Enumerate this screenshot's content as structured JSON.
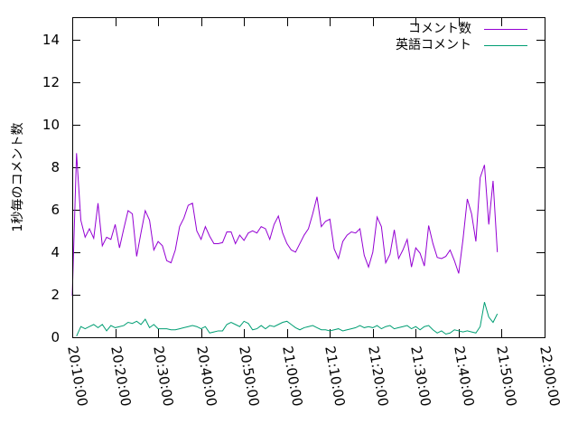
{
  "chart_data": {
    "type": "line",
    "title": "",
    "xlabel": "",
    "ylabel": "1秒毎のコメント数",
    "grid": false,
    "legend_position": "top-right",
    "xlim": [
      "20:10:00",
      "22:00:00"
    ],
    "ylim": [
      0,
      15
    ],
    "x_ticks": [
      "20:10:00",
      "20:20:00",
      "20:30:00",
      "20:40:00",
      "20:50:00",
      "21:00:00",
      "21:10:00",
      "21:20:00",
      "21:30:00",
      "21:40:00",
      "21:50:00",
      "22:00:00"
    ],
    "y_ticks": [
      "0",
      "2",
      "4",
      "6",
      "8",
      "10",
      "12",
      "14"
    ],
    "series": [
      {
        "name": "コメント数",
        "color": "#9400d3",
        "points": [
          [
            "20:10:00",
            1.95
          ],
          [
            "20:11:00",
            8.65
          ],
          [
            "20:12:00",
            5.5
          ],
          [
            "20:13:00",
            4.7
          ],
          [
            "20:14:00",
            5.1
          ],
          [
            "20:15:00",
            4.65
          ],
          [
            "20:16:00",
            6.3
          ],
          [
            "20:17:00",
            4.3
          ],
          [
            "20:18:00",
            4.7
          ],
          [
            "20:19:00",
            4.6
          ],
          [
            "20:20:00",
            5.3
          ],
          [
            "20:21:00",
            4.2
          ],
          [
            "20:22:00",
            5.1
          ],
          [
            "20:23:00",
            5.95
          ],
          [
            "20:24:00",
            5.8
          ],
          [
            "20:25:00",
            3.8
          ],
          [
            "20:26:00",
            4.9
          ],
          [
            "20:27:00",
            5.95
          ],
          [
            "20:28:00",
            5.5
          ],
          [
            "20:29:00",
            4.1
          ],
          [
            "20:30:00",
            4.5
          ],
          [
            "20:31:00",
            4.3
          ],
          [
            "20:32:00",
            3.6
          ],
          [
            "20:33:00",
            3.5
          ],
          [
            "20:34:00",
            4.1
          ],
          [
            "20:35:00",
            5.2
          ],
          [
            "20:36:00",
            5.6
          ],
          [
            "20:37:00",
            6.2
          ],
          [
            "20:38:00",
            6.3
          ],
          [
            "20:39:00",
            5.0
          ],
          [
            "20:40:00",
            4.6
          ],
          [
            "20:41:00",
            5.2
          ],
          [
            "20:42:00",
            4.75
          ],
          [
            "20:43:00",
            4.4
          ],
          [
            "20:44:00",
            4.4
          ],
          [
            "20:45:00",
            4.45
          ],
          [
            "20:46:00",
            4.95
          ],
          [
            "20:47:00",
            4.95
          ],
          [
            "20:48:00",
            4.4
          ],
          [
            "20:49:00",
            4.8
          ],
          [
            "20:50:00",
            4.55
          ],
          [
            "20:51:00",
            4.9
          ],
          [
            "20:52:00",
            5.0
          ],
          [
            "20:53:00",
            4.9
          ],
          [
            "20:54:00",
            5.2
          ],
          [
            "20:55:00",
            5.1
          ],
          [
            "20:56:00",
            4.6
          ],
          [
            "20:57:00",
            5.3
          ],
          [
            "20:58:00",
            5.7
          ],
          [
            "20:59:00",
            4.9
          ],
          [
            "21:00:00",
            4.4
          ],
          [
            "21:01:00",
            4.1
          ],
          [
            "21:02:00",
            4.0
          ],
          [
            "21:03:00",
            4.4
          ],
          [
            "21:04:00",
            4.8
          ],
          [
            "21:05:00",
            5.1
          ],
          [
            "21:06:00",
            5.8
          ],
          [
            "21:07:00",
            6.6
          ],
          [
            "21:08:00",
            5.2
          ],
          [
            "21:09:00",
            5.45
          ],
          [
            "21:10:00",
            5.55
          ],
          [
            "21:11:00",
            4.15
          ],
          [
            "21:12:00",
            3.7
          ],
          [
            "21:13:00",
            4.5
          ],
          [
            "21:14:00",
            4.8
          ],
          [
            "21:15:00",
            4.95
          ],
          [
            "21:16:00",
            4.9
          ],
          [
            "21:17:00",
            5.1
          ],
          [
            "21:18:00",
            3.85
          ],
          [
            "21:19:00",
            3.3
          ],
          [
            "21:20:00",
            4.0
          ],
          [
            "21:21:00",
            5.65
          ],
          [
            "21:22:00",
            5.2
          ],
          [
            "21:23:00",
            3.5
          ],
          [
            "21:24:00",
            3.9
          ],
          [
            "21:25:00",
            5.05
          ],
          [
            "21:26:00",
            3.7
          ],
          [
            "21:27:00",
            4.1
          ],
          [
            "21:28:00",
            4.6
          ],
          [
            "21:29:00",
            3.3
          ],
          [
            "21:30:00",
            4.2
          ],
          [
            "21:31:00",
            3.95
          ],
          [
            "21:32:00",
            3.35
          ],
          [
            "21:33:00",
            5.25
          ],
          [
            "21:34:00",
            4.4
          ],
          [
            "21:35:00",
            3.75
          ],
          [
            "21:36:00",
            3.7
          ],
          [
            "21:37:00",
            3.8
          ],
          [
            "21:38:00",
            4.1
          ],
          [
            "21:39:00",
            3.6
          ],
          [
            "21:40:00",
            3.0
          ],
          [
            "21:41:00",
            4.6
          ],
          [
            "21:42:00",
            6.5
          ],
          [
            "21:43:00",
            5.8
          ],
          [
            "21:44:00",
            4.5
          ],
          [
            "21:45:00",
            7.5
          ],
          [
            "21:46:00",
            8.1
          ],
          [
            "21:47:00",
            5.3
          ],
          [
            "21:48:00",
            7.35
          ],
          [
            "21:49:00",
            4.0
          ]
        ]
      },
      {
        "name": "英語コメント",
        "color": "#009e73",
        "points": [
          [
            "20:11:00",
            0.05
          ],
          [
            "20:12:00",
            0.5
          ],
          [
            "20:13:00",
            0.4
          ],
          [
            "20:14:00",
            0.5
          ],
          [
            "20:15:00",
            0.6
          ],
          [
            "20:16:00",
            0.45
          ],
          [
            "20:17:00",
            0.6
          ],
          [
            "20:18:00",
            0.3
          ],
          [
            "20:19:00",
            0.55
          ],
          [
            "20:20:00",
            0.45
          ],
          [
            "20:21:00",
            0.5
          ],
          [
            "20:22:00",
            0.55
          ],
          [
            "20:23:00",
            0.7
          ],
          [
            "20:24:00",
            0.65
          ],
          [
            "20:25:00",
            0.75
          ],
          [
            "20:26:00",
            0.6
          ],
          [
            "20:27:00",
            0.85
          ],
          [
            "20:28:00",
            0.45
          ],
          [
            "20:29:00",
            0.6
          ],
          [
            "20:30:00",
            0.4
          ],
          [
            "20:31:00",
            0.4
          ],
          [
            "20:32:00",
            0.4
          ],
          [
            "20:33:00",
            0.35
          ],
          [
            "20:34:00",
            0.35
          ],
          [
            "20:35:00",
            0.4
          ],
          [
            "20:36:00",
            0.45
          ],
          [
            "20:37:00",
            0.5
          ],
          [
            "20:38:00",
            0.55
          ],
          [
            "20:39:00",
            0.5
          ],
          [
            "20:40:00",
            0.4
          ],
          [
            "20:41:00",
            0.5
          ],
          [
            "20:42:00",
            0.2
          ],
          [
            "20:43:00",
            0.25
          ],
          [
            "20:44:00",
            0.3
          ],
          [
            "20:45:00",
            0.3
          ],
          [
            "20:46:00",
            0.6
          ],
          [
            "20:47:00",
            0.7
          ],
          [
            "20:48:00",
            0.6
          ],
          [
            "20:49:00",
            0.5
          ],
          [
            "20:50:00",
            0.75
          ],
          [
            "20:51:00",
            0.65
          ],
          [
            "20:52:00",
            0.35
          ],
          [
            "20:53:00",
            0.4
          ],
          [
            "20:54:00",
            0.55
          ],
          [
            "20:55:00",
            0.4
          ],
          [
            "20:56:00",
            0.55
          ],
          [
            "20:57:00",
            0.5
          ],
          [
            "20:58:00",
            0.6
          ],
          [
            "20:59:00",
            0.7
          ],
          [
            "21:00:00",
            0.75
          ],
          [
            "21:01:00",
            0.6
          ],
          [
            "21:02:00",
            0.45
          ],
          [
            "21:03:00",
            0.35
          ],
          [
            "21:04:00",
            0.45
          ],
          [
            "21:05:00",
            0.5
          ],
          [
            "21:06:00",
            0.55
          ],
          [
            "21:07:00",
            0.45
          ],
          [
            "21:08:00",
            0.35
          ],
          [
            "21:09:00",
            0.35
          ],
          [
            "21:10:00",
            0.3
          ],
          [
            "21:11:00",
            0.35
          ],
          [
            "21:12:00",
            0.4
          ],
          [
            "21:13:00",
            0.3
          ],
          [
            "21:14:00",
            0.35
          ],
          [
            "21:15:00",
            0.4
          ],
          [
            "21:16:00",
            0.45
          ],
          [
            "21:17:00",
            0.55
          ],
          [
            "21:18:00",
            0.45
          ],
          [
            "21:19:00",
            0.5
          ],
          [
            "21:20:00",
            0.45
          ],
          [
            "21:21:00",
            0.55
          ],
          [
            "21:22:00",
            0.4
          ],
          [
            "21:23:00",
            0.5
          ],
          [
            "21:24:00",
            0.55
          ],
          [
            "21:25:00",
            0.4
          ],
          [
            "21:26:00",
            0.45
          ],
          [
            "21:27:00",
            0.5
          ],
          [
            "21:28:00",
            0.55
          ],
          [
            "21:29:00",
            0.4
          ],
          [
            "21:30:00",
            0.5
          ],
          [
            "21:31:00",
            0.35
          ],
          [
            "21:32:00",
            0.5
          ],
          [
            "21:33:00",
            0.55
          ],
          [
            "21:34:00",
            0.35
          ],
          [
            "21:35:00",
            0.2
          ],
          [
            "21:36:00",
            0.3
          ],
          [
            "21:37:00",
            0.15
          ],
          [
            "21:38:00",
            0.2
          ],
          [
            "21:39:00",
            0.35
          ],
          [
            "21:40:00",
            0.3
          ],
          [
            "21:41:00",
            0.25
          ],
          [
            "21:42:00",
            0.3
          ],
          [
            "21:43:00",
            0.25
          ],
          [
            "21:44:00",
            0.2
          ],
          [
            "21:45:00",
            0.5
          ],
          [
            "21:46:00",
            1.65
          ],
          [
            "21:47:00",
            0.95
          ],
          [
            "21:48:00",
            0.7
          ],
          [
            "21:49:00",
            1.1
          ]
        ]
      }
    ]
  }
}
